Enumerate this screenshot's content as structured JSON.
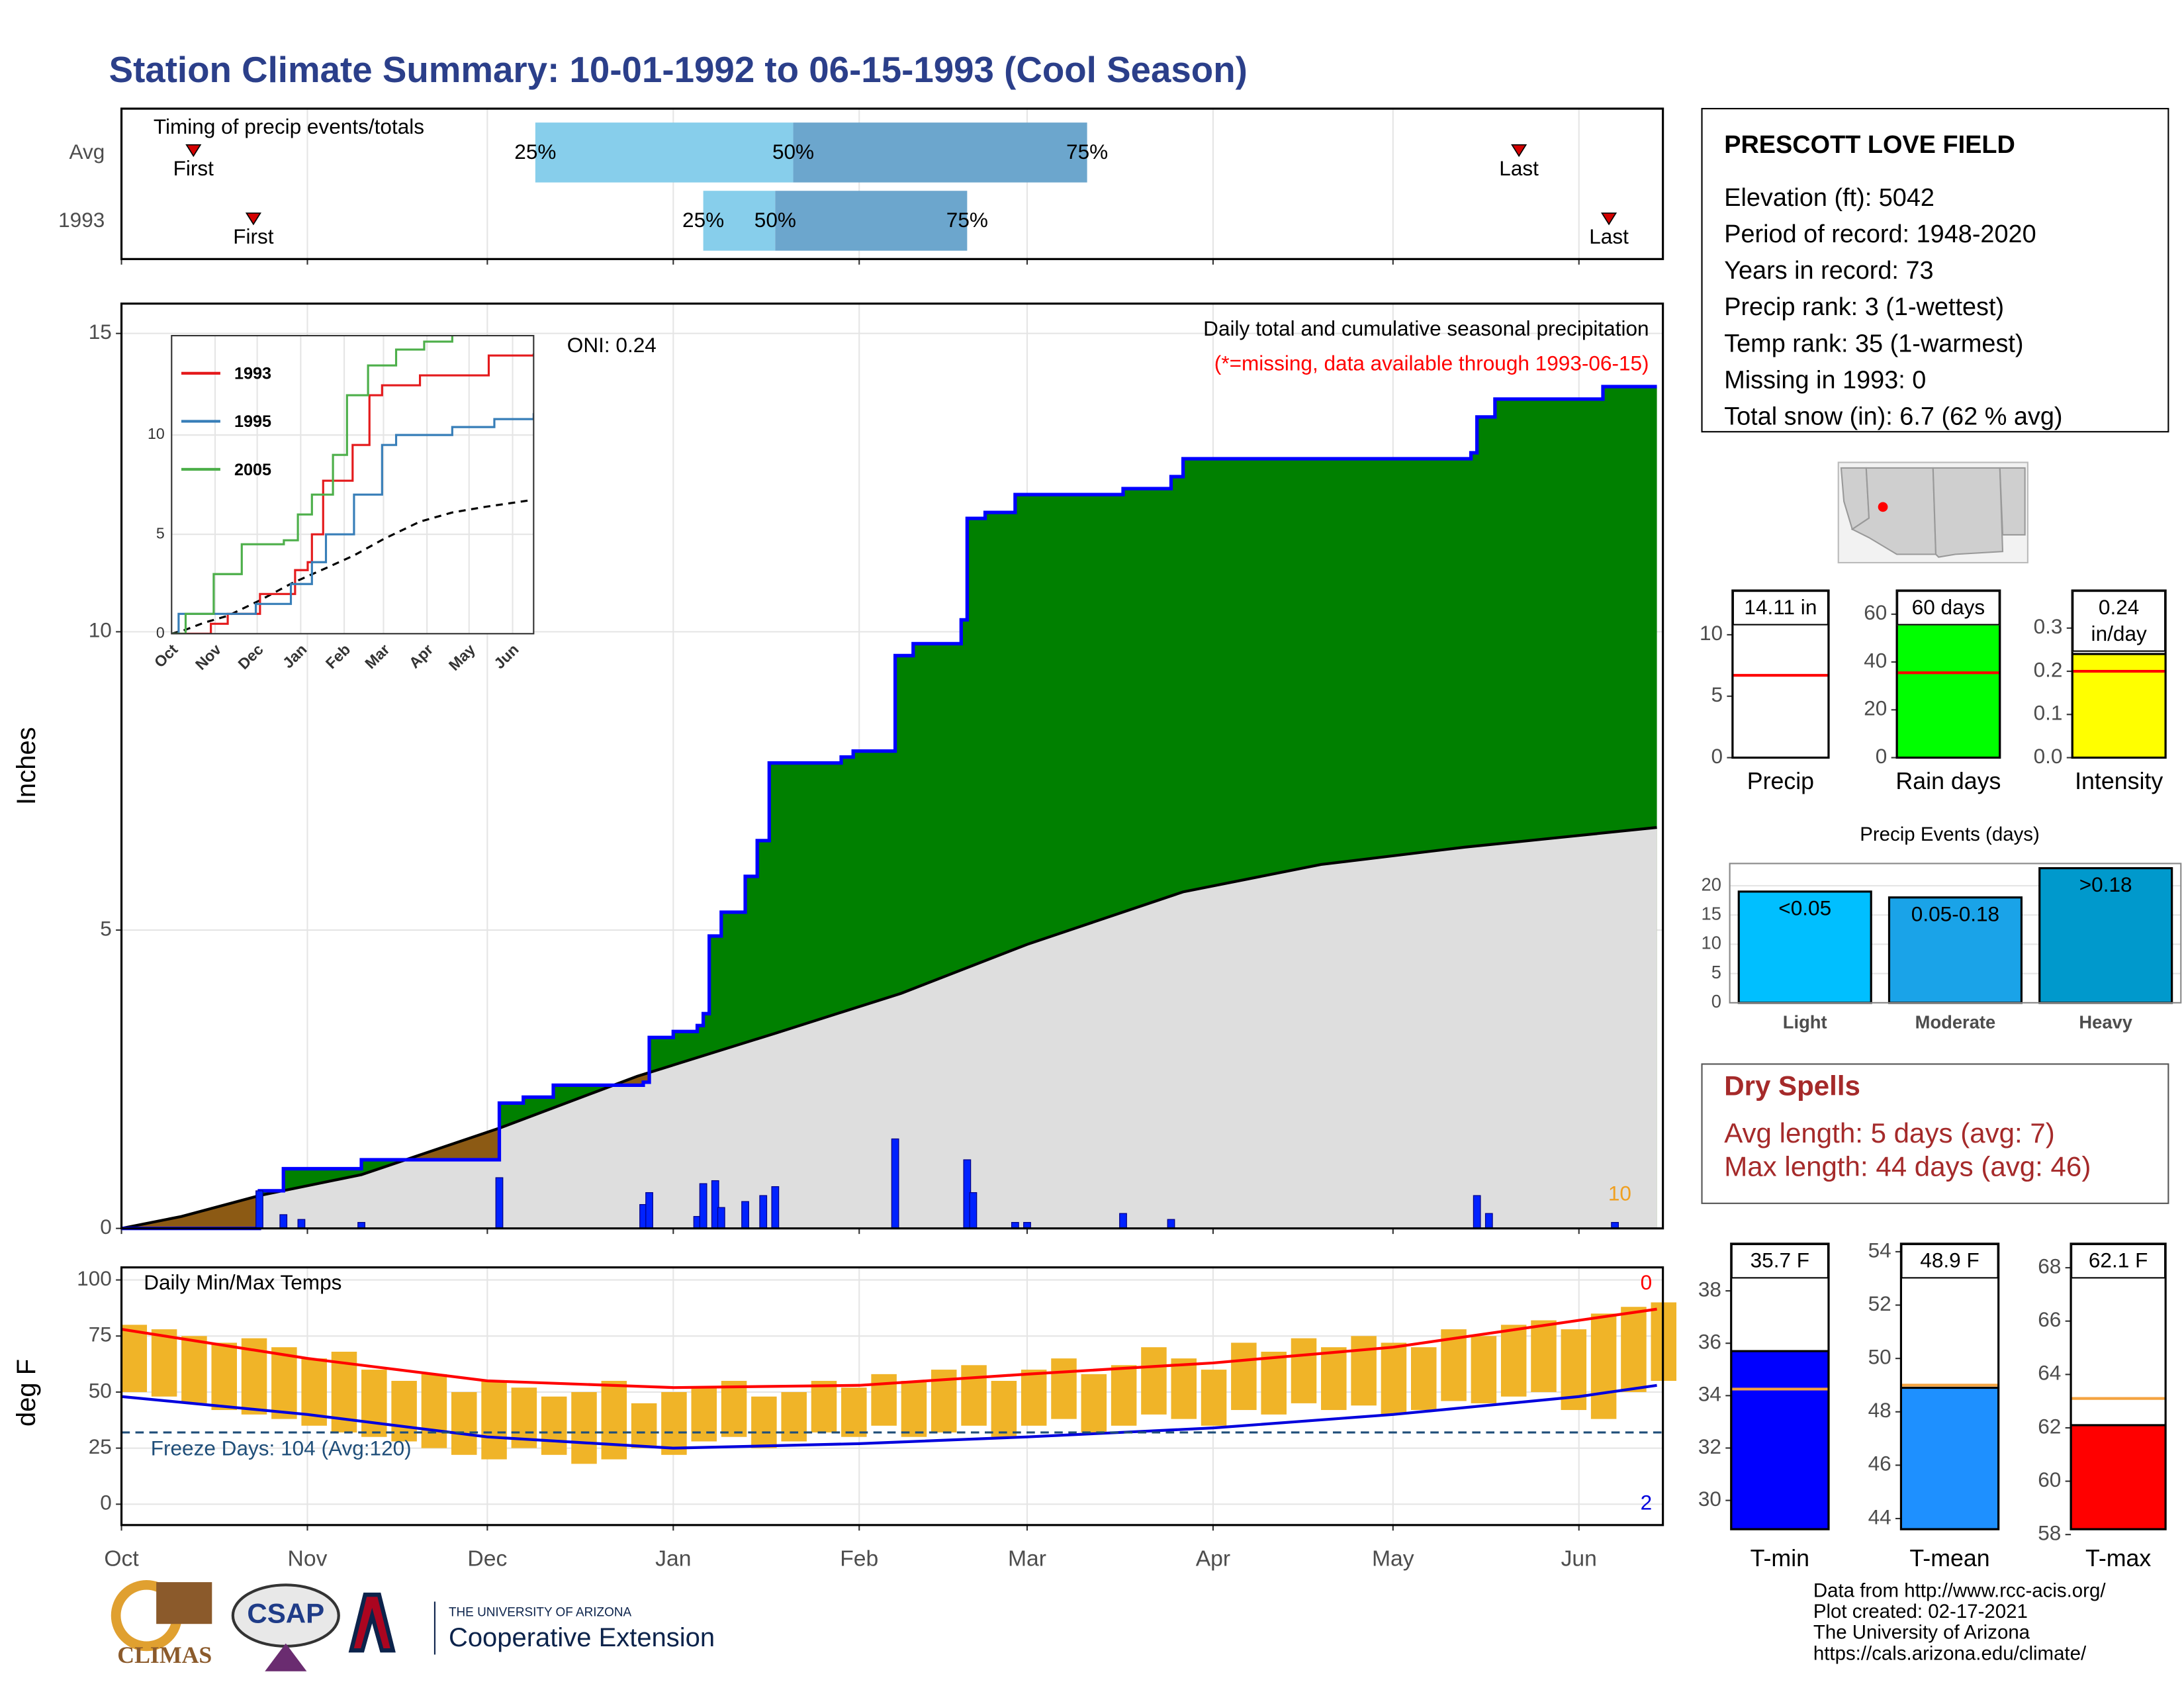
{
  "title": "Station Climate Summary: 10-01-1992 to 06-15-1993 (Cool Season)",
  "chart_data": [
    {
      "type": "timing",
      "title": "Timing of precip events/totals",
      "categories": [
        "Avg",
        "1993"
      ],
      "first": [
        12,
        22
      ],
      "p25": [
        69,
        97
      ],
      "p50": [
        112,
        109
      ],
      "p75": [
        161,
        141
      ],
      "last": [
        233,
        248
      ],
      "marker_labels": {
        "first": "First",
        "last": "Last",
        "p25": "25%",
        "p50": "50%",
        "p75": "75%"
      },
      "colors": {
        "p25": "#87ceeb",
        "p50": "#6ca6cd",
        "marker": "#d40000"
      },
      "xlim": [
        0,
        257
      ]
    },
    {
      "type": "area-step",
      "title": "Daily total and cumulative seasonal precipitation",
      "subtitle": "(*=missing, data available through 1993-06-15)",
      "annotation": "ONI: 0.24",
      "ylabel": "Inches",
      "snow_label": "10",
      "xlim": [
        0,
        257
      ],
      "ylim": [
        0,
        15.5
      ],
      "yticks": [
        0,
        5,
        10,
        15
      ],
      "grid": true,
      "colors": {
        "above": "#008000",
        "below": "#8c5a14",
        "normal": "#dedede"
      },
      "cumulative": {
        "color": "#0000ff",
        "x": [
          0,
          23,
          27,
          40,
          63,
          67,
          72,
          87,
          88,
          92,
          96,
          97,
          98,
          100,
          104,
          106,
          108,
          120,
          122,
          129,
          132,
          140,
          141,
          144,
          149,
          167,
          175,
          177,
          225,
          226,
          229,
          247,
          256
        ],
        "values": [
          0,
          0.63,
          1.0,
          1.15,
          2.1,
          2.2,
          2.4,
          2.45,
          3.2,
          3.3,
          3.4,
          3.6,
          4.9,
          5.3,
          5.9,
          6.5,
          7.8,
          7.9,
          8.0,
          9.6,
          9.8,
          10.2,
          11.9,
          12.0,
          12.3,
          12.4,
          12.6,
          12.9,
          13.0,
          13.6,
          13.9,
          14.11,
          14.11
        ]
      },
      "average": {
        "color": "#000000",
        "x": [
          0,
          10,
          23,
          40,
          63,
          86,
          109,
          130,
          151,
          177,
          200,
          224,
          256
        ],
        "values": [
          0,
          0.2,
          0.55,
          0.9,
          1.68,
          2.55,
          3.27,
          3.94,
          4.76,
          5.64,
          6.1,
          6.39,
          6.72
        ]
      },
      "daily": {
        "color": "#0022ff",
        "x": [
          23,
          27,
          30,
          40,
          63,
          87,
          88,
          96,
          97,
          99,
          100,
          104,
          107,
          109,
          129,
          141,
          142,
          149,
          151,
          167,
          175,
          226,
          228,
          249
        ],
        "values": [
          0.63,
          0.23,
          0.15,
          0.1,
          0.85,
          0.4,
          0.6,
          0.2,
          0.75,
          0.8,
          0.35,
          0.45,
          0.55,
          0.7,
          1.5,
          1.15,
          0.6,
          0.1,
          0.1,
          0.25,
          0.15,
          0.55,
          0.25,
          0.1
        ]
      }
    },
    {
      "type": "line",
      "xlim": [
        0,
        258
      ],
      "ylim": [
        0,
        15
      ],
      "yticks": [
        0,
        5,
        10
      ],
      "xticks": [
        {
          "value": 0,
          "label": "Oct"
        },
        {
          "value": 31,
          "label": "Nov"
        },
        {
          "value": 61,
          "label": "Dec"
        },
        {
          "value": 92,
          "label": "Jan"
        },
        {
          "value": 123,
          "label": "Feb"
        },
        {
          "value": 151,
          "label": "Mar"
        },
        {
          "value": 182,
          "label": "Apr"
        },
        {
          "value": 212,
          "label": "May"
        },
        {
          "value": 243,
          "label": "Jun"
        }
      ],
      "series": [
        {
          "name": "1993",
          "color": "#e41a1c",
          "x": [
            0,
            28,
            40,
            63,
            88,
            97,
            100,
            108,
            129,
            141,
            150,
            177,
            226,
            258
          ],
          "values": [
            0,
            0.5,
            1.0,
            2.0,
            3.2,
            3.6,
            5.0,
            7.7,
            9.5,
            12.0,
            12.5,
            13.0,
            14.0,
            14.1
          ]
        },
        {
          "name": "1995",
          "color": "#377eb8",
          "x": [
            0,
            5,
            60,
            85,
            100,
            110,
            130,
            150,
            160,
            200,
            230,
            258
          ],
          "values": [
            0,
            1.0,
            1.5,
            2.5,
            3.6,
            5.0,
            7.0,
            9.5,
            10.0,
            10.4,
            10.8,
            11.1
          ]
        },
        {
          "name": "2005",
          "color": "#4daf4a",
          "x": [
            0,
            10,
            30,
            50,
            80,
            90,
            100,
            115,
            125,
            140,
            160,
            180,
            200
          ],
          "values": [
            0,
            1.0,
            3.0,
            4.5,
            4.7,
            6.0,
            7.0,
            9.0,
            12.0,
            13.5,
            14.3,
            14.7,
            15
          ]
        }
      ]
    },
    {
      "type": "range-bar",
      "title": "Daily Min/Max Temps",
      "ylabel": "deg F",
      "xlim": [
        0,
        257
      ],
      "ylim": [
        -9.3,
        105.6
      ],
      "yticks": [
        0,
        25,
        50,
        75,
        100
      ],
      "grid": true,
      "xticks": [
        {
          "value": 0,
          "label": "Oct"
        },
        {
          "value": 31,
          "label": "Nov"
        },
        {
          "value": 61,
          "label": "Dec"
        },
        {
          "value": 92,
          "label": "Jan"
        },
        {
          "value": 123,
          "label": "Feb"
        },
        {
          "value": 151,
          "label": "Mar"
        },
        {
          "value": 182,
          "label": "Apr"
        },
        {
          "value": 212,
          "label": "May"
        },
        {
          "value": 243,
          "label": "Jun"
        }
      ],
      "x": [
        0,
        5,
        10,
        15,
        20,
        25,
        30,
        35,
        40,
        45,
        50,
        55,
        60,
        65,
        70,
        75,
        80,
        85,
        90,
        95,
        100,
        105,
        110,
        115,
        120,
        125,
        130,
        135,
        140,
        145,
        150,
        155,
        160,
        165,
        170,
        175,
        180,
        185,
        190,
        195,
        200,
        205,
        210,
        215,
        220,
        225,
        230,
        235,
        240,
        245,
        250,
        255
      ],
      "max": [
        80,
        78,
        75,
        72,
        74,
        70,
        65,
        68,
        60,
        55,
        58,
        50,
        55,
        52,
        48,
        50,
        55,
        45,
        50,
        52,
        55,
        48,
        50,
        55,
        52,
        58,
        55,
        60,
        62,
        55,
        60,
        65,
        58,
        62,
        70,
        65,
        60,
        72,
        68,
        74,
        70,
        75,
        72,
        70,
        78,
        75,
        80,
        82,
        78,
        85,
        88,
        90
      ],
      "min": [
        50,
        48,
        45,
        42,
        40,
        38,
        35,
        32,
        30,
        28,
        25,
        22,
        20,
        25,
        22,
        18,
        20,
        25,
        22,
        28,
        30,
        25,
        28,
        32,
        30,
        35,
        30,
        32,
        35,
        30,
        35,
        38,
        32,
        35,
        40,
        38,
        35,
        42,
        40,
        45,
        42,
        44,
        40,
        42,
        46,
        45,
        48,
        50,
        42,
        38,
        50,
        55
      ],
      "color": "#f0b428",
      "avg_max": {
        "color": "#ff0000",
        "x": [
          0,
          31,
          61,
          92,
          123,
          151,
          182,
          212,
          243,
          256
        ],
        "values": [
          78,
          65,
          55,
          52,
          53,
          58,
          63,
          70,
          82,
          87
        ]
      },
      "avg_min": {
        "color": "#0000dd",
        "x": [
          0,
          31,
          61,
          92,
          123,
          151,
          182,
          212,
          243,
          256
        ],
        "values": [
          48,
          40,
          30,
          25,
          27,
          30,
          34,
          40,
          48,
          53
        ]
      },
      "freeze": 32,
      "freeze_label": "Freeze Days: 104 (Avg:120)",
      "record_highs": 0,
      "record_lows": 2
    },
    {
      "type": "bar",
      "categories": [
        "Precip"
      ],
      "values": [
        14.11
      ],
      "value_labels": [
        "14.11 in"
      ],
      "average": 6.7,
      "average_color": "#ff0000",
      "color": "#ffffff",
      "ylim": [
        0,
        13.6
      ],
      "yticks": [
        0,
        5,
        10
      ]
    },
    {
      "type": "bar",
      "categories": [
        "Rain days"
      ],
      "values": [
        60
      ],
      "value_labels": [
        "60 days"
      ],
      "average": 35.5,
      "average_color": "#ff0000",
      "color": "#00ff00",
      "ylim": [
        0,
        69.9
      ],
      "yticks": [
        0,
        20,
        40,
        60
      ]
    },
    {
      "type": "bar",
      "categories": [
        "Intensity"
      ],
      "values": [
        0.24
      ],
      "value_labels": [
        "0.24 in/day"
      ],
      "average": 0.2,
      "average_color": "#ff0000",
      "color": "#ffff00",
      "ylim": [
        0,
        0.387
      ],
      "yticks": [
        {
          "value": 0,
          "label": "0.0"
        },
        0.1,
        0.2,
        0.3
      ]
    },
    {
      "type": "bar",
      "title": "Precip Events (days)",
      "categories": [
        "Light",
        "Moderate",
        "Heavy"
      ],
      "values": [
        19,
        18,
        23
      ],
      "thresholds": [
        "<0.05",
        "0.05-0.18",
        ">0.18"
      ],
      "colors": [
        "#00bfff",
        "#1aa3e8",
        "#0099cc"
      ],
      "ylim": [
        0,
        23.8
      ],
      "yticks": [
        0,
        5,
        10,
        15,
        20
      ]
    },
    {
      "type": "bar",
      "categories": [
        "T-min"
      ],
      "values": [
        35.7
      ],
      "value_labels": [
        "35.7 F"
      ],
      "average": 34.25,
      "average_color": "#f4a340",
      "color": "#0000ff",
      "ylim": [
        28.9,
        39.8
      ],
      "yticks": [
        30,
        32,
        34,
        36,
        38
      ]
    },
    {
      "type": "bar",
      "categories": [
        "T-mean"
      ],
      "values": [
        48.9
      ],
      "value_labels": [
        "48.9 F"
      ],
      "average": 49.0,
      "average_color": "#f4a340",
      "color": "#1e90ff",
      "ylim": [
        43.6,
        54.3
      ],
      "yticks": [
        44,
        46,
        48,
        50,
        52,
        54
      ]
    },
    {
      "type": "bar",
      "categories": [
        "T-max"
      ],
      "values": [
        62.1
      ],
      "value_labels": [
        "62.1 F"
      ],
      "average": 63.1,
      "average_color": "#f4a340",
      "color": "#ff0000",
      "ylim": [
        58.2,
        68.9
      ],
      "yticks": [
        58,
        60,
        62,
        64,
        66,
        68
      ]
    }
  ],
  "station": {
    "name": "PRESCOTT LOVE FIELD",
    "lines": [
      "Elevation (ft): 5042",
      "Period of record: 1948-2020",
      "Years in record: 73",
      "Precip rank: 3 (1-wettest)",
      "Temp rank: 35 (1-warmest)",
      "Missing in 1993: 0",
      "Total snow (in): 6.7 (62 % avg)"
    ]
  },
  "dry_spells": {
    "title": "Dry Spells",
    "lines": [
      "Avg length: 5 days (avg: 7)",
      "Max length: 44 days (avg: 46)"
    ]
  },
  "footer": [
    "Data from http://www.rcc-acis.org/",
    "Plot created: 02-17-2021",
    "The University of Arizona",
    "https://cals.arizona.edu/climate/"
  ],
  "logos": {
    "climas": "CLIMAS",
    "csap": "CSAP",
    "university": "THE UNIVERSITY OF ARIZONA",
    "extension": "Cooperative Extension"
  }
}
